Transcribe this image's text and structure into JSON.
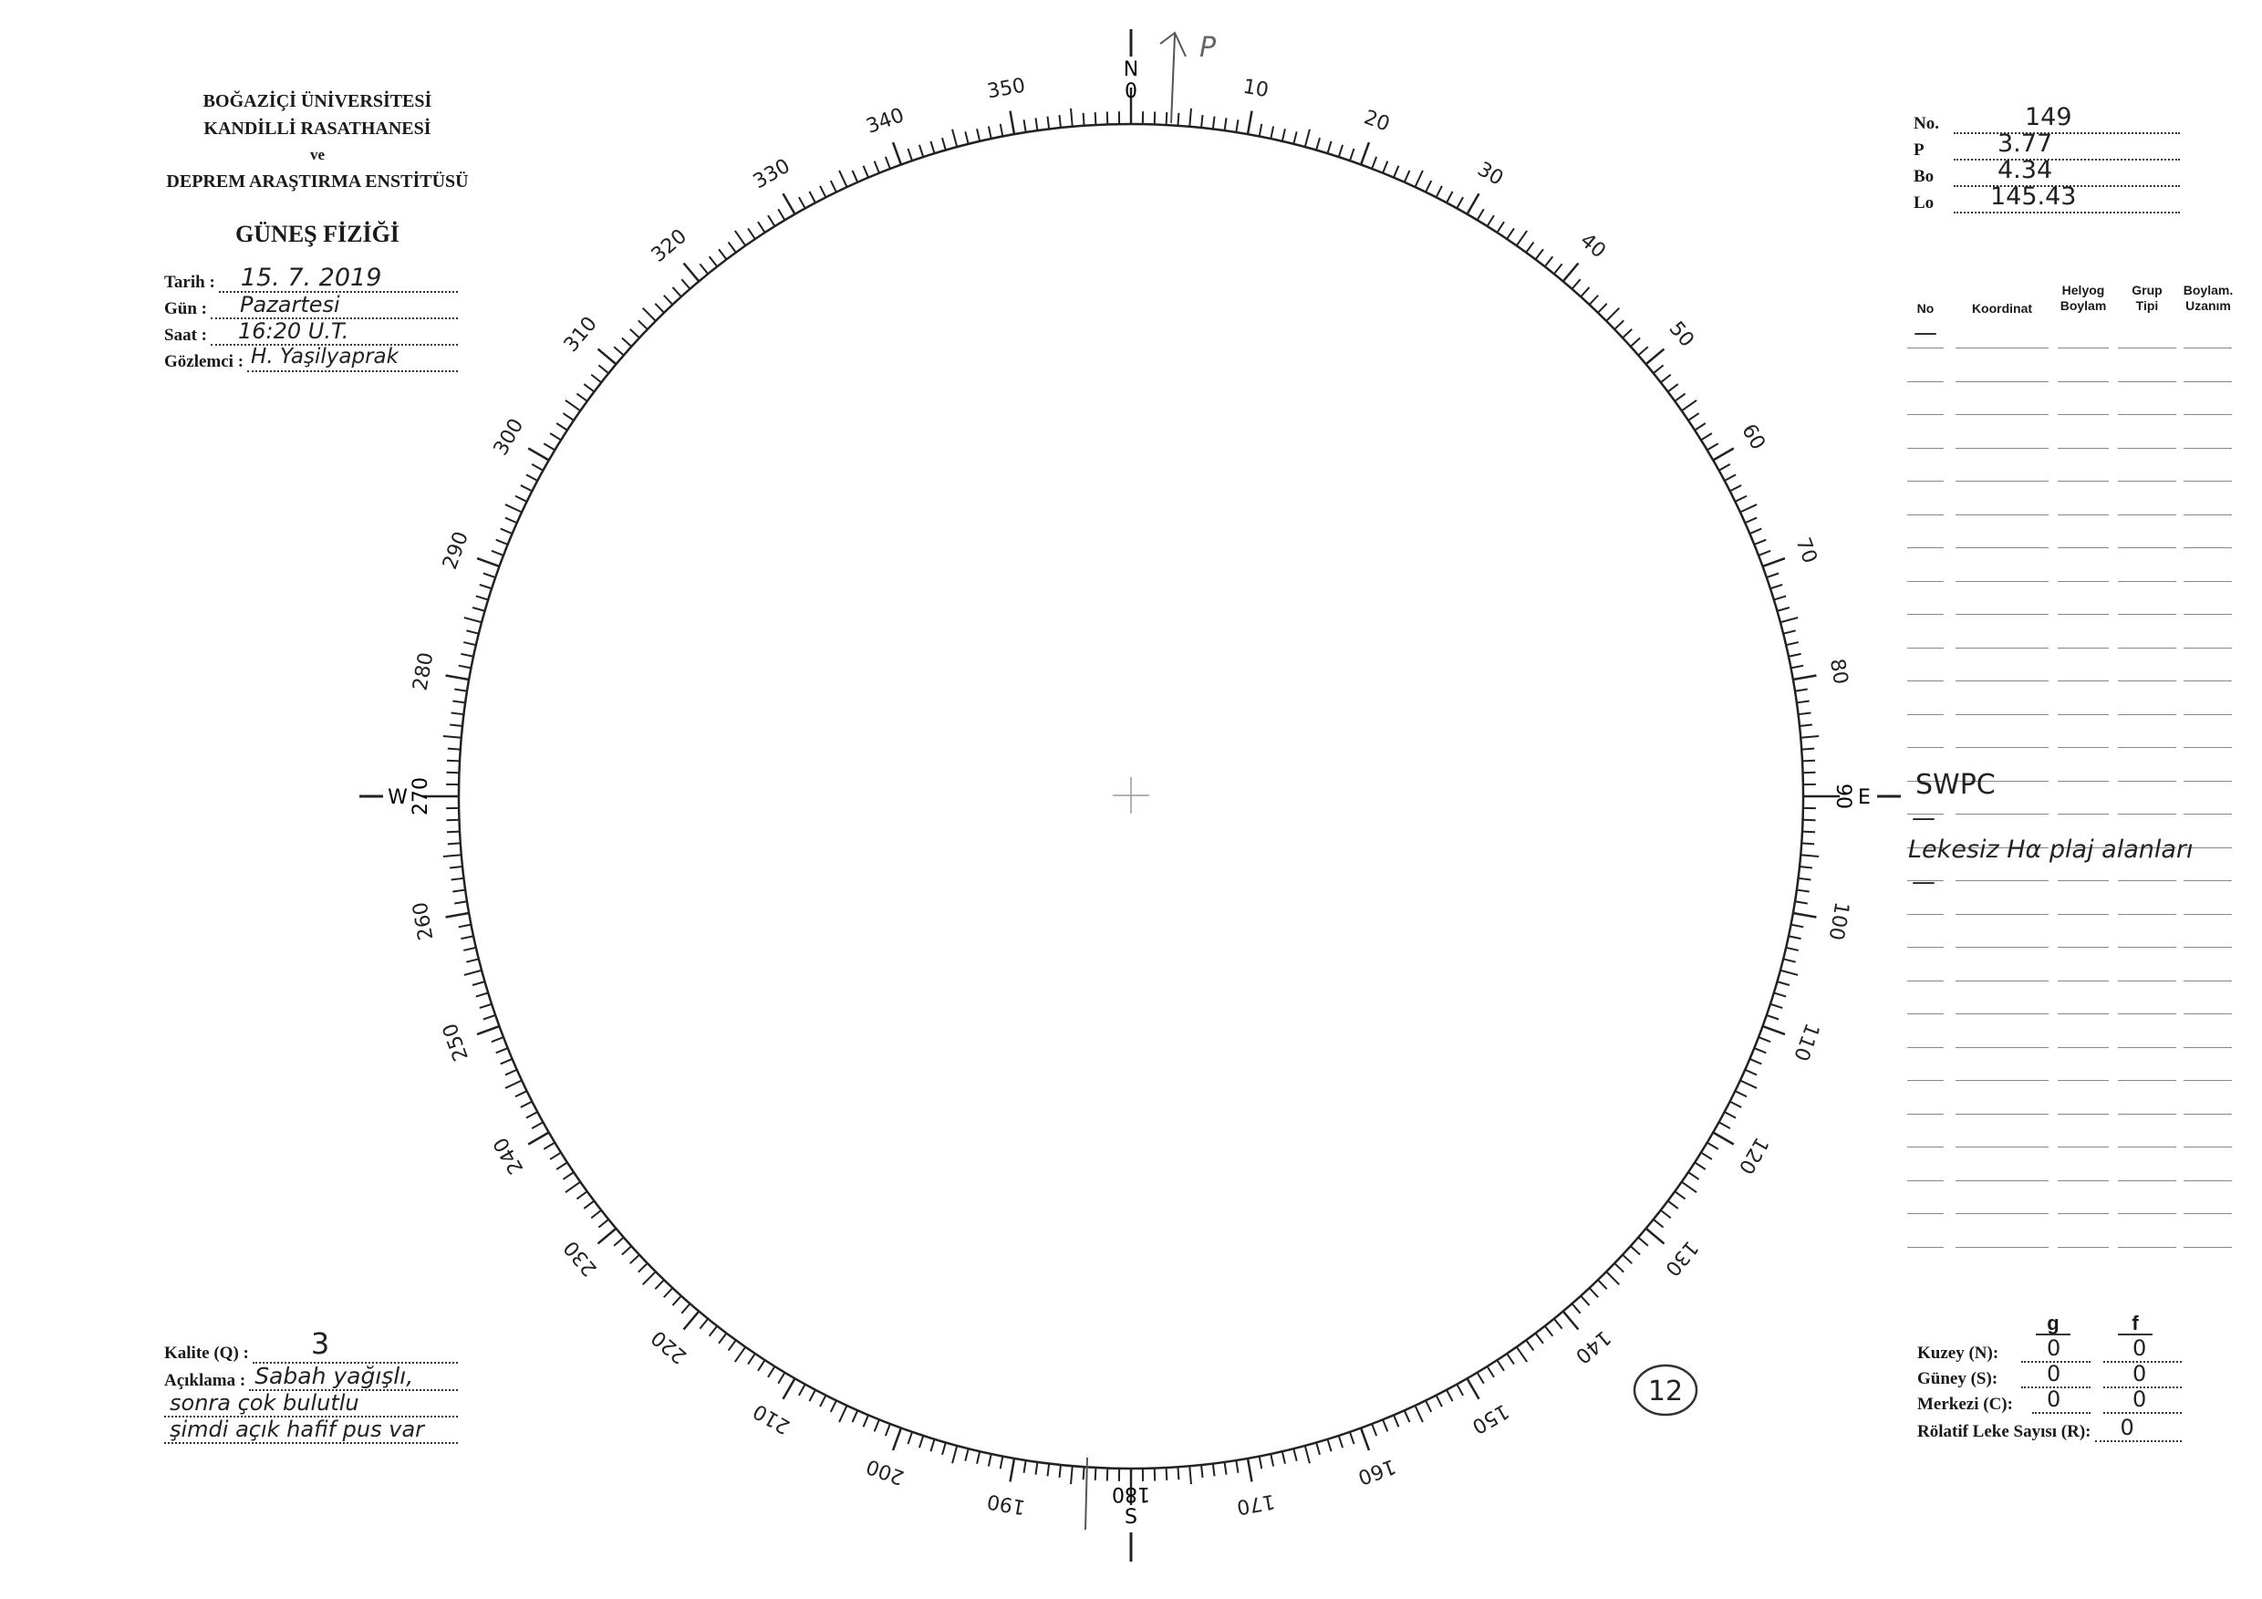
{
  "institution": {
    "line1": "BOĞAZİÇİ ÜNİVERSİTESİ",
    "line2": "KANDİLLİ RASATHANESİ",
    "line3": "ve",
    "line4": "DEPREM ARAŞTIRMA ENSTİTÜSÜ",
    "department": "GÜNEŞ FİZİĞİ"
  },
  "observation": {
    "date_label": "Tarih :",
    "date_value": "15. 7. 2019",
    "day_label": "Gün :",
    "day_value": "Pazartesi",
    "time_label": "Saat :",
    "time_value": "16:20 U.T.",
    "observer_label": "Gözlemci :",
    "observer_value": "H. Yaşilyaprak"
  },
  "ephemeris": {
    "no_label": "No.",
    "no_value": "149",
    "p_label": "P",
    "p_value": "3.77",
    "bo_label": "Bo",
    "bo_value": "4.34",
    "lo_label": "Lo",
    "lo_value": "145.43"
  },
  "table": {
    "headers": [
      "No",
      "Koordinat",
      "Helyog\nBoylam",
      "Grup\nTipi",
      "Boylam.\nUzanım"
    ],
    "entries": [
      {
        "text": "—"
      },
      {
        "text": "SWPC"
      },
      {
        "text": "—"
      },
      {
        "text": "Lekesiz Hα plaj alanları"
      },
      {
        "text": "—"
      }
    ]
  },
  "dial": {
    "north": "N",
    "north_deg": "0",
    "south": "S",
    "south_deg": "180",
    "east": "E",
    "east_deg": "90",
    "west": "W",
    "west_deg": "270",
    "degree_labels": [
      "10",
      "20",
      "30",
      "40",
      "50",
      "60",
      "70",
      "80",
      "100",
      "110",
      "120",
      "130",
      "140",
      "150",
      "160",
      "170",
      "190",
      "200",
      "210",
      "220",
      "230",
      "240",
      "250",
      "260",
      "280",
      "290",
      "300",
      "310",
      "320",
      "330",
      "340",
      "350"
    ],
    "north_pole_mark": "P",
    "sheet_number": "12"
  },
  "quality": {
    "label": "Kalite (Q) :",
    "value": "3",
    "comment_label": "Açıklama :",
    "comment_lines": [
      "Sabah yağışlı,",
      "sonra çok bulutlu",
      "şimdi açık hafif pus var"
    ]
  },
  "counts": {
    "g_header": "g",
    "f_header": "f",
    "north_label": "Kuzey (N):",
    "north_g": "0",
    "north_f": "0",
    "south_label": "Güney (S):",
    "south_g": "0",
    "south_f": "0",
    "center_label": "Merkezi (C):",
    "center_g": "0",
    "center_f": "0",
    "relative_label": "Rölatif Leke Sayısı (R):",
    "relative_value": "0"
  }
}
